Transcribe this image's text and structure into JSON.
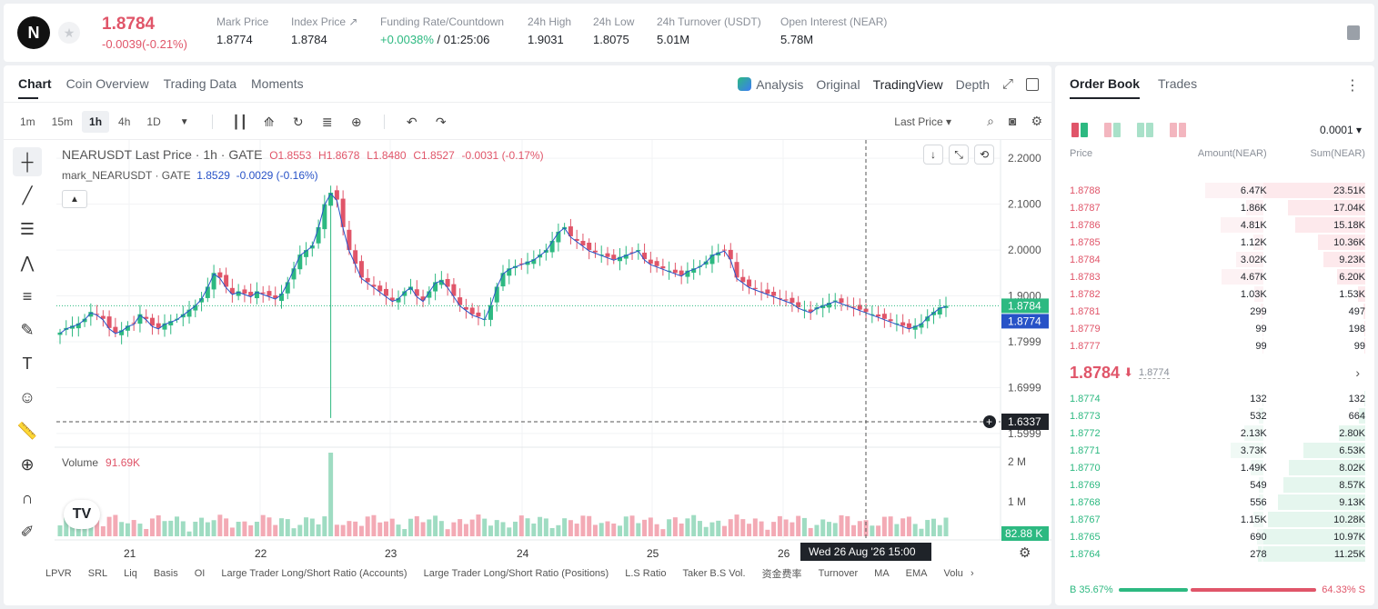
{
  "ticker": {
    "logo_letter": "N",
    "last_price": "1.8784",
    "change": "-0.0039(-0.21%)",
    "stats": [
      {
        "label": "Mark Price",
        "value": "1.8774"
      },
      {
        "label": "Index Price ↗",
        "value": "1.8784"
      },
      {
        "label": "Funding Rate/Countdown",
        "value_green": "+0.0038%",
        "value": " / 01:25:06"
      },
      {
        "label": "24h High",
        "value": "1.9031"
      },
      {
        "label": "24h Low",
        "value": "1.8075"
      },
      {
        "label": "24h Turnover (USDT)",
        "value": "5.01M"
      },
      {
        "label": "Open Interest (NEAR)",
        "value": "5.78M"
      }
    ]
  },
  "chart_panel": {
    "tabs": [
      "Chart",
      "Coin Overview",
      "Trading Data",
      "Moments"
    ],
    "views": [
      "Analysis",
      "Original",
      "TradingView",
      "Depth"
    ],
    "intervals": [
      "1m",
      "15m",
      "1h",
      "4h",
      "1D"
    ],
    "active_interval": "1h",
    "price_source": "Last Price ▾",
    "legend": {
      "title": "NEARUSDT Last Price · 1h · GATE",
      "o": "O1.8553",
      "h": "H1.8678",
      "l": "L1.8480",
      "c": "C1.8527",
      "chg": "-0.0031 (-0.17%)",
      "mark_label": "mark_NEARUSDT · GATE",
      "mark_val": "1.8529",
      "mark_chg": "-0.0029 (-0.16%)"
    },
    "volume_label": "Volume",
    "volume_value": "91.69K",
    "indicators": [
      "LPVR",
      "SRL",
      "Liq",
      "Basis",
      "OI",
      "Large Trader Long/Short Ratio (Accounts)",
      "Large Trader Long/Short Ratio (Positions)",
      "L.S Ratio",
      "Taker B.S Vol.",
      "资金费率",
      "Turnover",
      "MA",
      "EMA",
      "Volu"
    ]
  },
  "chart_data": {
    "type": "candlestick",
    "title": "NEARUSDT Last Price · 1h · GATE",
    "x_ticks": [
      "21",
      "22",
      "23",
      "24",
      "25",
      "26"
    ],
    "y_ticks": [
      2.2,
      2.1,
      2.0,
      1.9,
      1.7999,
      1.6999,
      1.5999
    ],
    "y_tick_labels": [
      "2.2000",
      "2.1000",
      "2.0000",
      "1.9000",
      "1.7999",
      "1.6999",
      "1.5999"
    ],
    "ylim": [
      1.57,
      2.24
    ],
    "close_path": [
      1.82,
      1.83,
      1.835,
      1.84,
      1.85,
      1.865,
      1.86,
      1.85,
      1.83,
      1.82,
      1.825,
      1.835,
      1.84,
      1.86,
      1.85,
      1.835,
      1.83,
      1.84,
      1.845,
      1.85,
      1.86,
      1.87,
      1.88,
      1.895,
      1.92,
      1.95,
      1.94,
      1.92,
      1.905,
      1.91,
      1.905,
      1.9,
      1.91,
      1.905,
      1.9,
      1.895,
      1.905,
      1.93,
      1.96,
      1.99,
      2.0,
      2.01,
      2.05,
      2.1,
      2.125,
      2.11,
      2.05,
      2.0,
      1.97,
      1.94,
      1.93,
      1.92,
      1.91,
      1.9,
      1.89,
      1.895,
      1.91,
      1.92,
      1.9,
      1.89,
      1.91,
      1.93,
      1.935,
      1.92,
      1.9,
      1.88,
      1.87,
      1.86,
      1.855,
      1.85,
      1.88,
      1.92,
      1.95,
      1.96,
      1.965,
      1.97,
      1.975,
      1.98,
      1.99,
      2.0,
      2.02,
      2.04,
      2.05,
      2.03,
      2.02,
      2.01,
      2.0,
      1.995,
      1.99,
      1.985,
      1.98,
      1.985,
      1.99,
      1.995,
      2.0,
      1.98,
      1.97,
      1.965,
      1.96,
      1.955,
      1.95,
      1.945,
      1.955,
      1.96,
      1.965,
      1.975,
      1.99,
      1.995,
      2.0,
      1.98,
      1.94,
      1.93,
      1.92,
      1.915,
      1.91,
      1.905,
      1.9,
      1.895,
      1.89,
      1.885,
      1.875,
      1.87,
      1.865,
      1.875,
      1.88,
      1.885,
      1.89,
      1.885,
      1.88,
      1.875,
      1.87,
      1.865,
      1.86,
      1.855,
      1.85,
      1.845,
      1.84,
      1.835,
      1.83,
      1.835,
      1.84,
      1.855,
      1.865,
      1.875,
      1.8784
    ],
    "current_price": "1.8784",
    "mark_price": "1.8774",
    "crosshair_price": "1.6337",
    "crosshair_time": "Wed 26 Aug '26   15:00",
    "volume_ticks": [
      "2 M",
      "1 M"
    ],
    "volume_value": "82.88 K"
  },
  "order_book": {
    "tabs": [
      "Order Book",
      "Trades"
    ],
    "precision": "0.0001",
    "headers": [
      "Price",
      "Amount(NEAR)",
      "Sum(NEAR)"
    ],
    "asks": [
      {
        "price": "1.8788",
        "amount": "6.47K",
        "sum": "23.51K",
        "amt_frac": 0.58,
        "sum_frac": 1.0
      },
      {
        "price": "1.8787",
        "amount": "1.86K",
        "sum": "17.04K",
        "amt_frac": 0.17,
        "sum_frac": 0.72
      },
      {
        "price": "1.8786",
        "amount": "4.81K",
        "sum": "15.18K",
        "amt_frac": 0.43,
        "sum_frac": 0.65
      },
      {
        "price": "1.8785",
        "amount": "1.12K",
        "sum": "10.36K",
        "amt_frac": 0.1,
        "sum_frac": 0.44
      },
      {
        "price": "1.8784",
        "amount": "3.02K",
        "sum": "9.23K",
        "amt_frac": 0.27,
        "sum_frac": 0.39
      },
      {
        "price": "1.8783",
        "amount": "4.67K",
        "sum": "6.20K",
        "amt_frac": 0.42,
        "sum_frac": 0.26
      },
      {
        "price": "1.8782",
        "amount": "1.03K",
        "sum": "1.53K",
        "amt_frac": 0.09,
        "sum_frac": 0.07
      },
      {
        "price": "1.8781",
        "amount": "299",
        "sum": "497",
        "amt_frac": 0.03,
        "sum_frac": 0.02
      },
      {
        "price": "1.8779",
        "amount": "99",
        "sum": "198",
        "amt_frac": 0.01,
        "sum_frac": 0.01
      },
      {
        "price": "1.8777",
        "amount": "99",
        "sum": "99",
        "amt_frac": 0.01,
        "sum_frac": 0.005
      }
    ],
    "mid_price": "1.8784",
    "mid_arrow": "⬇",
    "mark_price": "1.8774",
    "bids": [
      {
        "price": "1.8774",
        "amount": "132",
        "sum": "132",
        "amt_frac": 0.01,
        "sum_frac": 0.01
      },
      {
        "price": "1.8773",
        "amount": "532",
        "sum": "664",
        "amt_frac": 0.05,
        "sum_frac": 0.06
      },
      {
        "price": "1.8772",
        "amount": "2.13K",
        "sum": "2.80K",
        "amt_frac": 0.19,
        "sum_frac": 0.25
      },
      {
        "price": "1.8771",
        "amount": "3.73K",
        "sum": "6.53K",
        "amt_frac": 0.33,
        "sum_frac": 0.58
      },
      {
        "price": "1.8770",
        "amount": "1.49K",
        "sum": "8.02K",
        "amt_frac": 0.13,
        "sum_frac": 0.71
      },
      {
        "price": "1.8769",
        "amount": "549",
        "sum": "8.57K",
        "amt_frac": 0.05,
        "sum_frac": 0.76
      },
      {
        "price": "1.8768",
        "amount": "556",
        "sum": "9.13K",
        "amt_frac": 0.05,
        "sum_frac": 0.81
      },
      {
        "price": "1.8767",
        "amount": "1.15K",
        "sum": "10.28K",
        "amt_frac": 0.1,
        "sum_frac": 0.91
      },
      {
        "price": "1.8765",
        "amount": "690",
        "sum": "10.97K",
        "amt_frac": 0.06,
        "sum_frac": 0.97
      },
      {
        "price": "1.8764",
        "amount": "278",
        "sum": "11.25K",
        "amt_frac": 0.02,
        "sum_frac": 1.0
      }
    ],
    "buy_ratio": "B 35.67%",
    "sell_ratio": "64.33% S",
    "buy_frac": 0.3567
  },
  "colors": {
    "up": "#2db981",
    "down": "#e05569",
    "mark": "#2752c7"
  }
}
